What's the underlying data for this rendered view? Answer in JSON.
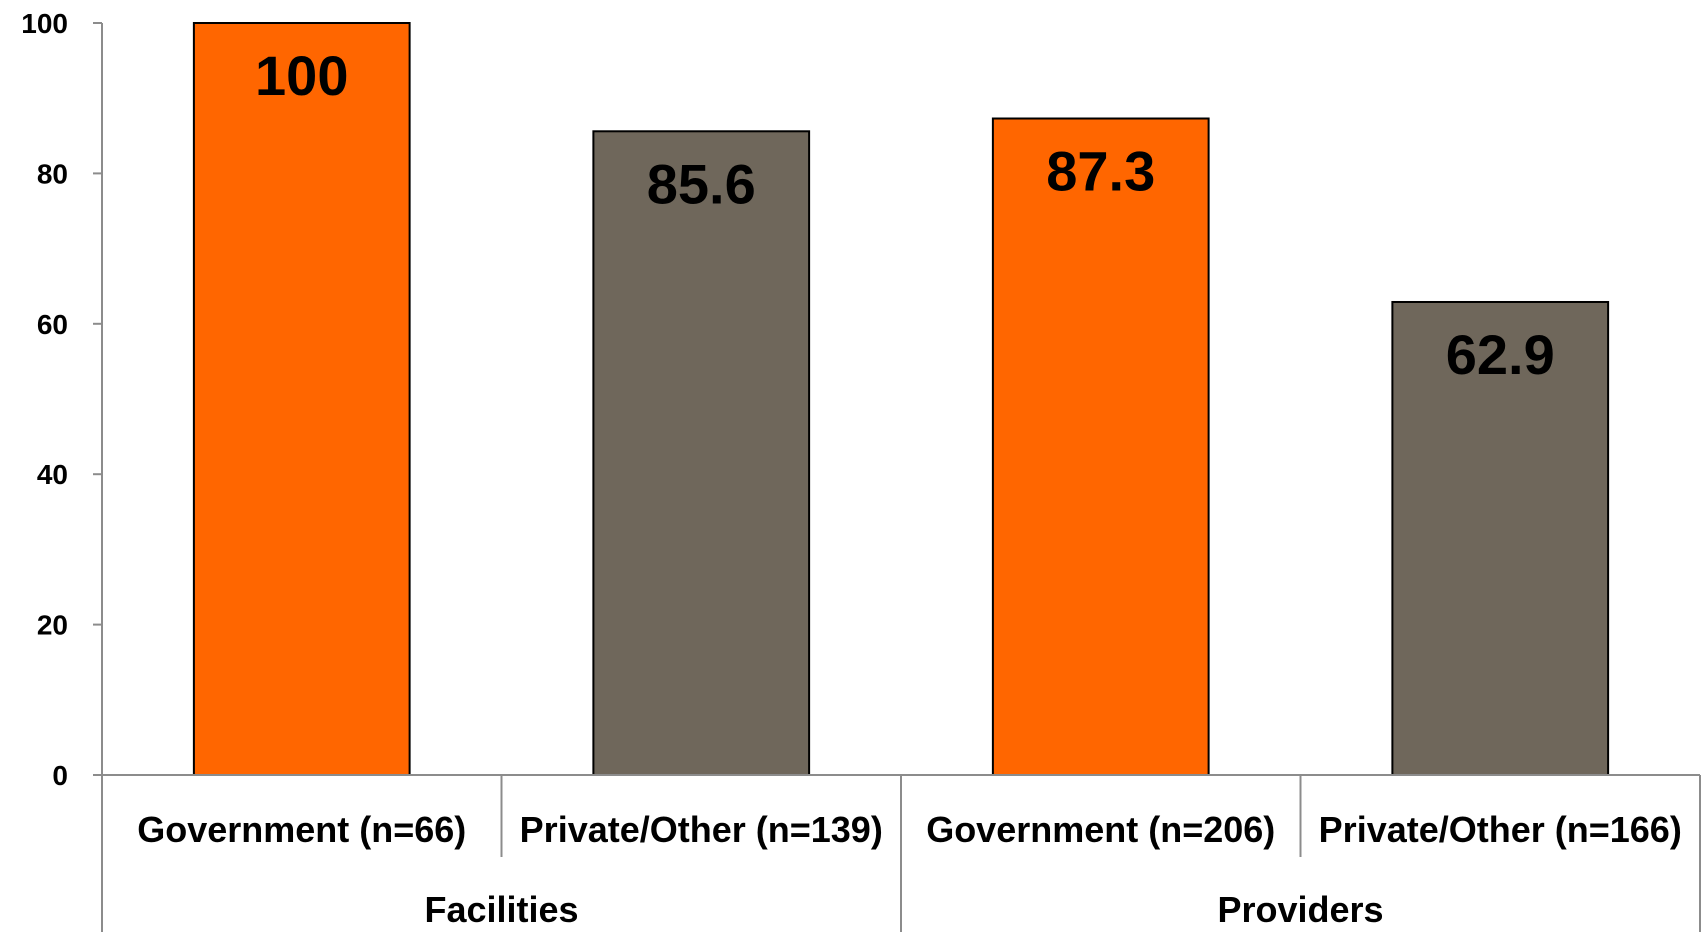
{
  "chart_data": {
    "type": "bar",
    "title": "",
    "xlabel": "",
    "ylabel": "",
    "ylim": [
      0,
      100
    ],
    "yticks": [
      0,
      20,
      40,
      60,
      80,
      100
    ],
    "grid": false,
    "legend": "none",
    "groups": [
      {
        "label": "Facilities",
        "categories": [
          "Government (n=66)",
          "Private/Other (n=139)"
        ]
      },
      {
        "label": "Providers",
        "categories": [
          "Government (n=206)",
          "Private/Other (n=166)"
        ]
      }
    ],
    "categories": [
      "Government (n=66)",
      "Private/Other (n=139)",
      "Government (n=206)",
      "Private/Other (n=166)"
    ],
    "values": [
      100,
      85.6,
      87.3,
      62.9
    ],
    "data_labels": [
      "100",
      "85.6",
      "87.3",
      "62.9"
    ],
    "bar_colors": [
      "#FF6600",
      "#6F675B",
      "#FF6600",
      "#6F675B"
    ]
  }
}
